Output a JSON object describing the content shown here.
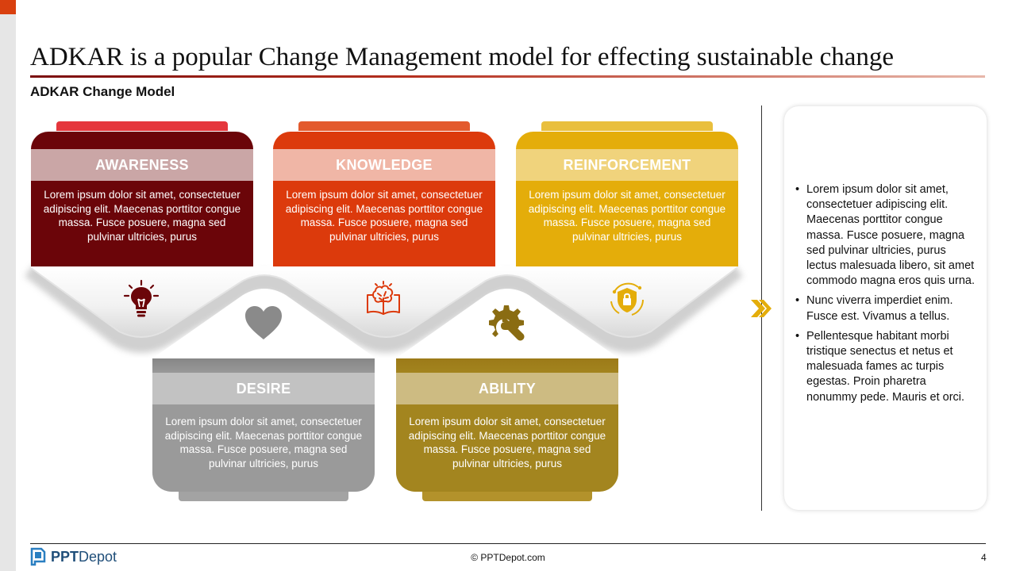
{
  "title": "ADKAR is a popular Change Management model for effecting sustainable change",
  "subtitle": "ADKAR Change Model",
  "stages": [
    {
      "key": "awareness",
      "label": "AWARENESS",
      "body": "Lorem ipsum dolor sit amet, consectetuer adipiscing elit. Maecenas porttitor congue massa. Fusce posuere, magna sed pulvinar ultricies, purus",
      "icon": "lightbulb-icon",
      "color": "#6b0509"
    },
    {
      "key": "desire",
      "label": "DESIRE",
      "body": "Lorem ipsum dolor sit amet, consectetuer adipiscing elit. Maecenas porttitor congue massa. Fusce posuere, magna sed pulvinar ultricies, purus",
      "icon": "heart-icon",
      "color": "#9a9a9a"
    },
    {
      "key": "knowledge",
      "label": "KNOWLEDGE",
      "body": "Lorem ipsum dolor sit amet, consectetuer adipiscing elit. Maecenas porttitor congue massa. Fusce posuere, magna sed pulvinar ultricies, purus",
      "icon": "brain-book-icon",
      "color": "#dc3a0c"
    },
    {
      "key": "ability",
      "label": "ABILITY",
      "body": "Lorem ipsum dolor sit amet, consectetuer adipiscing elit. Maecenas porttitor congue massa. Fusce posuere, magna sed pulvinar ultricies, purus",
      "icon": "gear-wrench-icon",
      "color": "#a3851f"
    },
    {
      "key": "reinforcement",
      "label": "REINFORCEMENT",
      "body": "Lorem ipsum dolor sit amet, consectetuer adipiscing elit. Maecenas porttitor congue massa. Fusce posuere, magna sed pulvinar ultricies, purus",
      "icon": "shield-lock-icon",
      "color": "#e4ad0a"
    }
  ],
  "side_panel": {
    "bullets": [
      "Lorem ipsum dolor sit amet, consectetuer adipiscing elit. Maecenas porttitor congue massa. Fusce posuere, magna sed pulvinar ultricies, purus lectus malesuada libero, sit amet commodo magna eros quis urna.",
      "Nunc viverra imperdiet enim. Fusce est. Vivamus a tellus.",
      "Pellentesque habitant morbi tristique senectus et netus et malesuada fames ac turpis egestas. Proin pharetra nonummy pede. Mauris et orci."
    ]
  },
  "footer": {
    "logo_bold": "PPT",
    "logo_rest": "Depot",
    "copyright": "© PPTDepot.com",
    "page_number": "4"
  }
}
